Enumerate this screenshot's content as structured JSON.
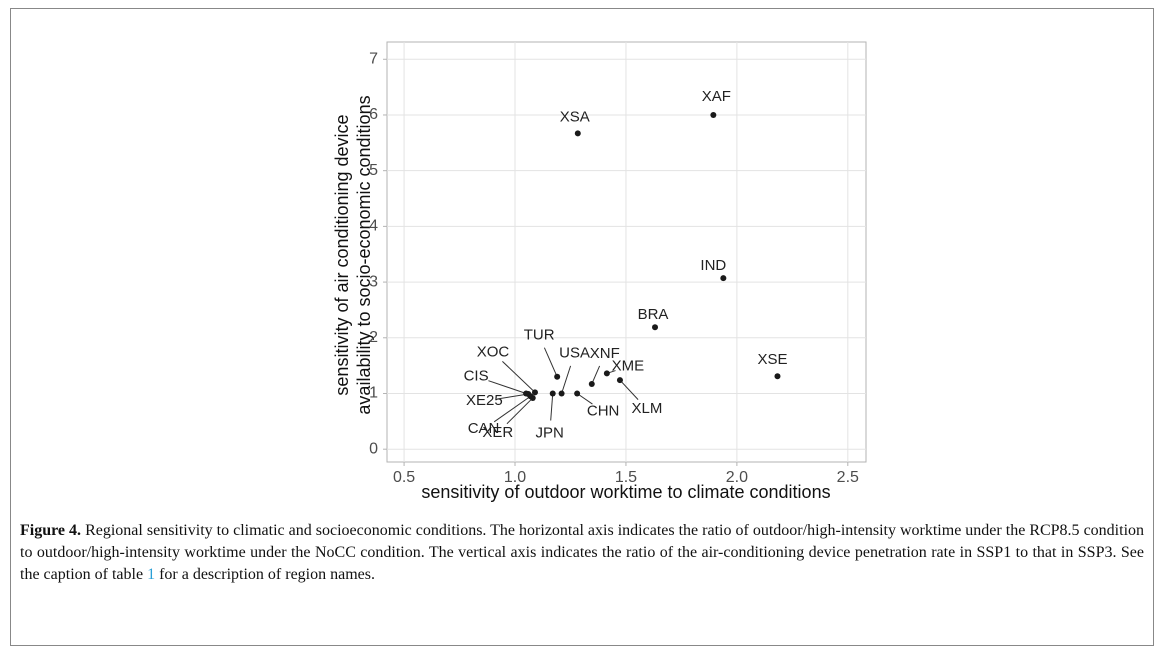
{
  "chart_data": {
    "type": "scatter",
    "x_label": "sensitivity of outdoor worktime to climate conditions",
    "y_label": [
      "sensitivity of air conditioning device",
      "availability to socio-economic conditions"
    ],
    "point_labels": [
      "XAF",
      "XSA",
      "IND",
      "BRA",
      "XSE",
      "XME",
      "XLM",
      "XNF",
      "TUR",
      "USA",
      "CHN",
      "JPN",
      "XER",
      "CAN",
      "XE25",
      "CIS",
      "XOC"
    ],
    "x": [
      1.894,
      1.283,
      1.939,
      1.631,
      2.183,
      1.414,
      1.473,
      1.346,
      1.19,
      1.21,
      1.28,
      1.17,
      1.08,
      1.07,
      1.06,
      1.05,
      1.09
    ],
    "values": [
      6.0,
      5.67,
      3.07,
      2.19,
      1.31,
      1.36,
      1.24,
      1.17,
      1.3,
      1.0,
      1.0,
      1.0,
      0.92,
      0.95,
      0.99,
      1.0,
      1.02
    ],
    "color": "#1a1a1a",
    "xlim": [
      0.423,
      2.582
    ],
    "ylim": [
      -0.23,
      7.31
    ],
    "xticks": [
      0.5,
      {
        "value": 1,
        "label": "1.0"
      },
      1.5,
      {
        "value": 2,
        "label": "2.0"
      },
      2.5
    ],
    "yticks": [
      0,
      1,
      2,
      3,
      4,
      5,
      6,
      7
    ],
    "grid": true
  },
  "caption": {
    "label": "Figure 4.",
    "text": " Regional sensitivity to climatic and socioeconomic conditions. The horizontal axis indicates the ratio of outdoor/high-intensity worktime under the RCP8.5 condition to outdoor/high-intensity worktime under the NoCC condition. The vertical axis indicates the ratio of the air-conditioning device penetration rate in SSP1 to that in SSP3. See the caption of table ",
    "link": "1",
    "text_end": " for a description of region names."
  }
}
